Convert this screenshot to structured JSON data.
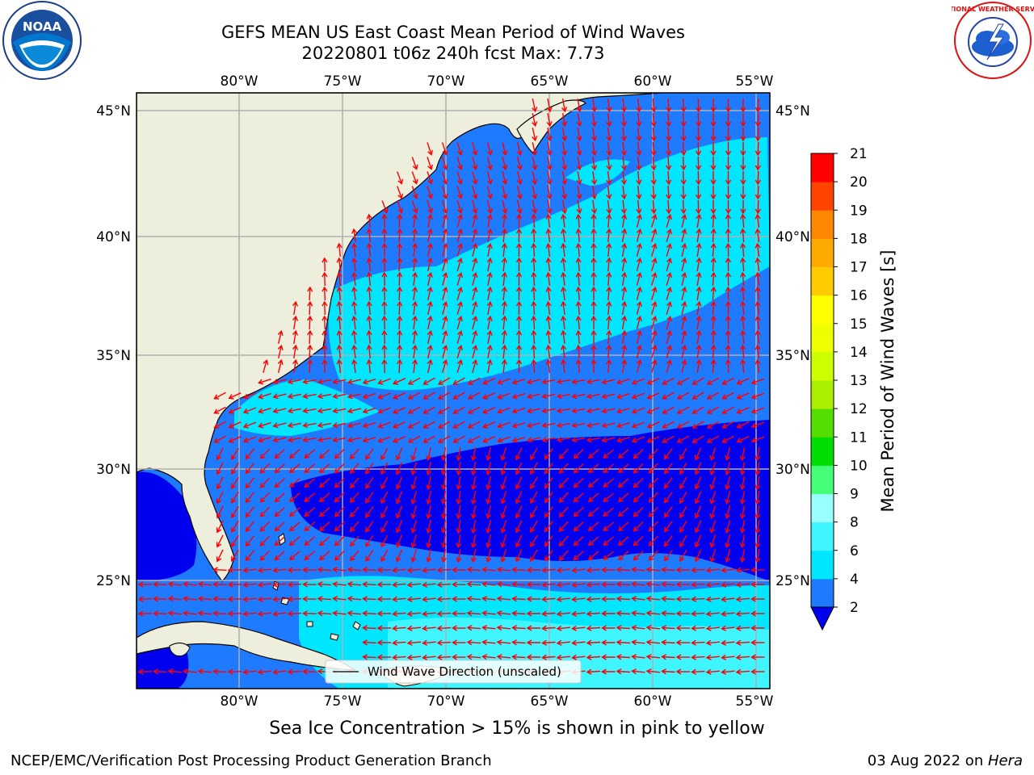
{
  "title_line1": "GEFS MEAN US East Coast Mean Period of Wind Waves",
  "title_line2": "20220801 t06z 240h fcst   Max: 7.73",
  "legend_label": "Wind Wave Direction (unscaled)",
  "colorbar": {
    "label": "Mean Period of Wind Waves [s]",
    "ticks": [
      "2",
      "4",
      "6",
      "8",
      "9",
      "10",
      "11",
      "12",
      "13",
      "14",
      "15",
      "16",
      "17",
      "18",
      "19",
      "20",
      "21"
    ],
    "colors": [
      "#0000ee",
      "#1e7bff",
      "#00e6ff",
      "#3ff5ff",
      "#99ffff",
      "#44ff77",
      "#00dd00",
      "#55dd00",
      "#aaee00",
      "#ccff00",
      "#eeff00",
      "#ffff00",
      "#ffcc00",
      "#ffaa00",
      "#ff8800",
      "#ff4400",
      "#ff0000"
    ]
  },
  "lon_labels": [
    "80°W",
    "75°W",
    "70°W",
    "65°W",
    "60°W",
    "55°W"
  ],
  "lat_labels": [
    "45°N",
    "40°N",
    "35°N",
    "30°N",
    "25°N"
  ],
  "note": "Sea Ice Concentration > 15% is shown in pink to yellow",
  "footer_left": "NCEP/EMC/Verification Post Processing Product Generation Branch",
  "footer_date": "03 Aug 2022 on ",
  "footer_host": "Hera",
  "logos": {
    "noaa_text": "NOAA",
    "nws_text": "NATIONAL WEATHER SERVICE"
  },
  "colors": {
    "land": "#eeeedd",
    "arrow": "#ff0000",
    "grid": "#b0b0b0"
  }
}
